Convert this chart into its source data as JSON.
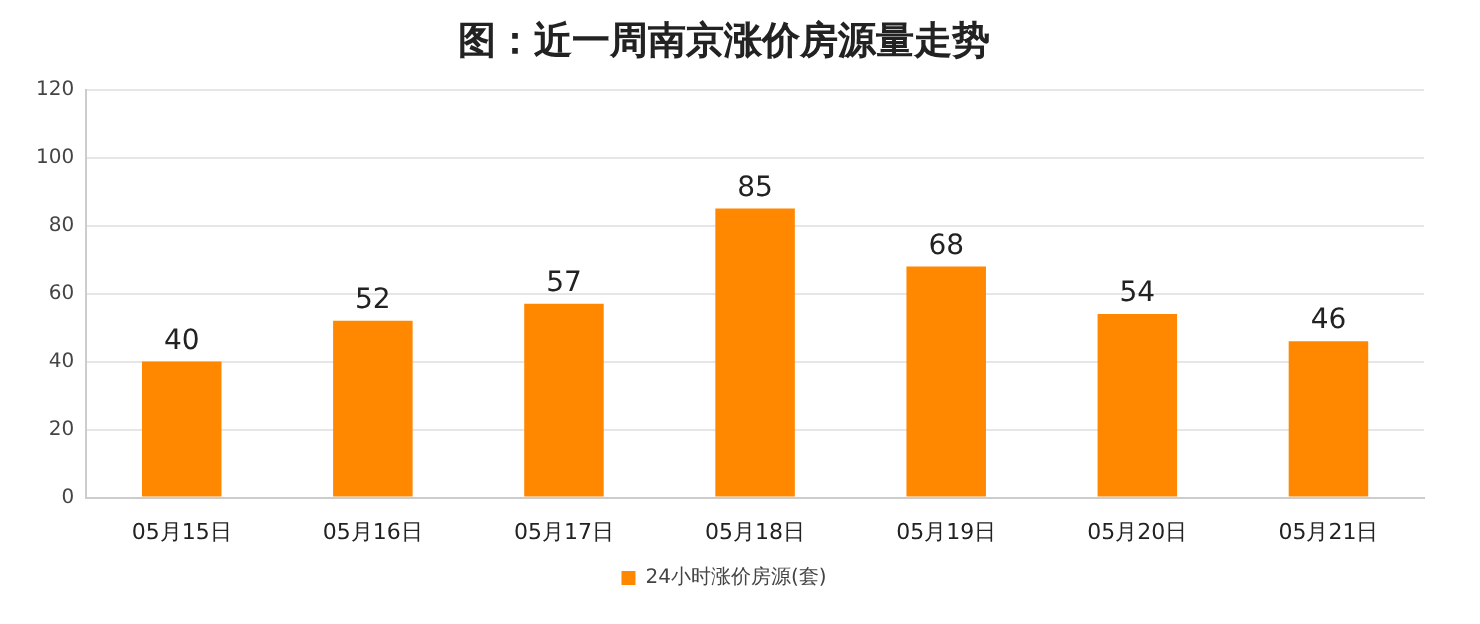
{
  "chart_data": {
    "type": "bar",
    "title": "图：近一周南京涨价房源量走势",
    "categories": [
      "05月15日",
      "05月16日",
      "05月17日",
      "05月18日",
      "05月19日",
      "05月20日",
      "05月21日"
    ],
    "series": [
      {
        "name": "24小时涨价房源(套)",
        "color": "#ff8800",
        "values": [
          40,
          52,
          57,
          85,
          68,
          54,
          46
        ]
      }
    ],
    "ylim": [
      0,
      120
    ],
    "yticks": [
      0,
      20,
      40,
      60,
      80,
      100,
      120
    ],
    "grid": "y",
    "legend": "bottom",
    "data_labels": true
  }
}
